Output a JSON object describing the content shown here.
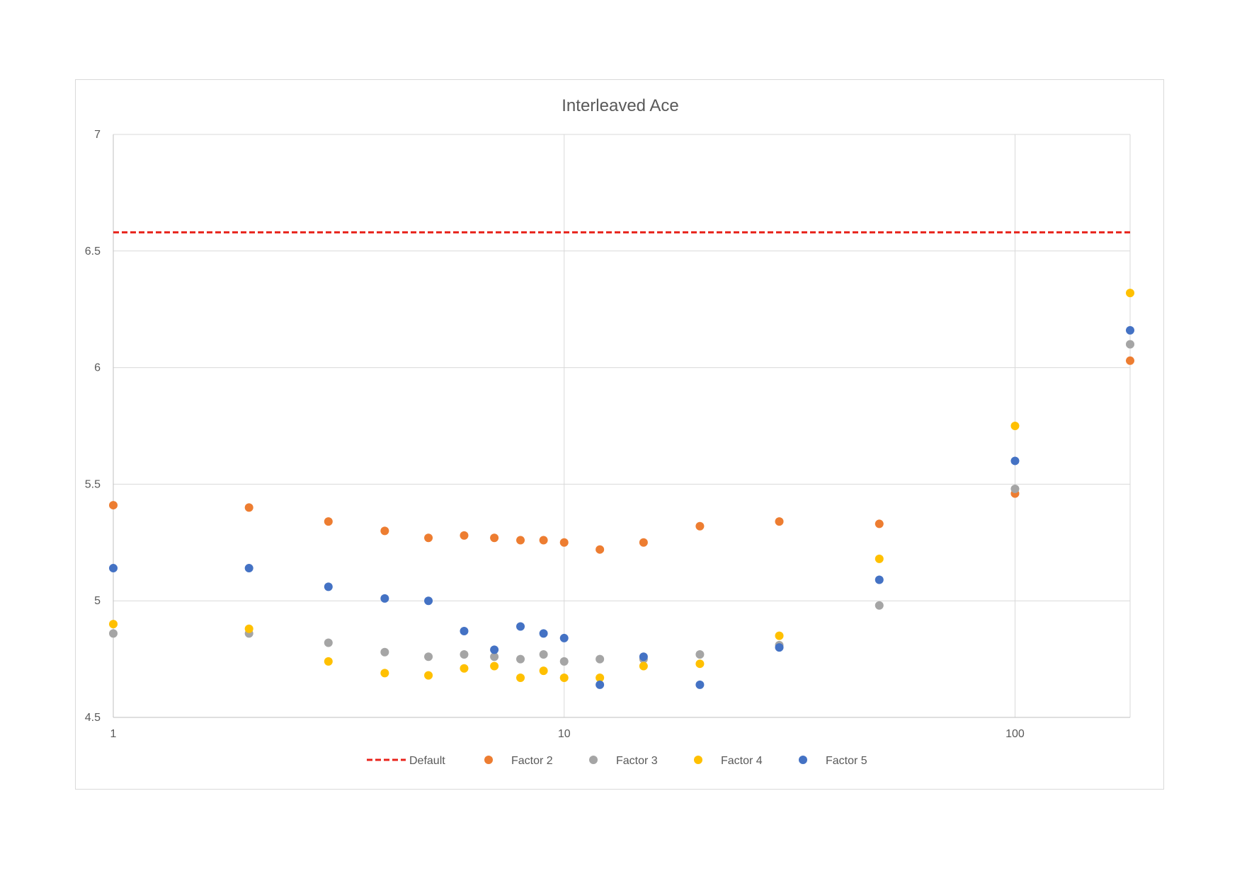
{
  "chart_data": {
    "type": "scatter",
    "title": "Interleaved Ace",
    "xlabel": "",
    "ylabel": "",
    "x_scale": "log",
    "xlim": [
      1,
      180
    ],
    "ylim": [
      4.5,
      7
    ],
    "x_ticks": [
      "1",
      "10",
      "100"
    ],
    "y_ticks": [
      "4.5",
      "5",
      "5.5",
      "6",
      "6.5",
      "7"
    ],
    "grid": true,
    "legend_position": "bottom",
    "x": [
      1,
      2,
      3,
      4,
      5,
      6,
      7,
      8,
      9,
      10,
      12,
      15,
      20,
      30,
      50,
      100,
      200
    ],
    "reference_line": {
      "name": "Default",
      "y": 6.58,
      "color": "#e8231b",
      "style": "dashed"
    },
    "series": [
      {
        "name": "Factor 2",
        "color": "#ed7d31",
        "values": [
          5.41,
          5.4,
          5.34,
          5.3,
          5.27,
          5.28,
          5.27,
          5.26,
          5.26,
          5.25,
          5.22,
          5.25,
          5.32,
          5.34,
          5.33,
          5.46,
          6.03
        ]
      },
      {
        "name": "Factor 3",
        "color": "#a5a5a5",
        "values": [
          4.86,
          4.86,
          4.82,
          4.78,
          4.76,
          4.77,
          4.76,
          4.75,
          4.77,
          4.74,
          4.75,
          4.75,
          4.77,
          4.81,
          4.98,
          5.48,
          6.1
        ]
      },
      {
        "name": "Factor 4",
        "color": "#ffc000",
        "values": [
          4.9,
          4.88,
          4.74,
          4.69,
          4.68,
          4.71,
          4.72,
          4.67,
          4.7,
          4.67,
          4.67,
          4.72,
          4.73,
          4.85,
          5.18,
          5.75,
          6.32
        ]
      },
      {
        "name": "Factor 5",
        "color": "#4472c4",
        "values": [
          5.14,
          5.14,
          5.06,
          5.01,
          5.0,
          4.87,
          4.79,
          4.89,
          4.86,
          4.84,
          4.64,
          4.76,
          4.64,
          4.8,
          5.09,
          5.6,
          6.16
        ]
      }
    ]
  }
}
